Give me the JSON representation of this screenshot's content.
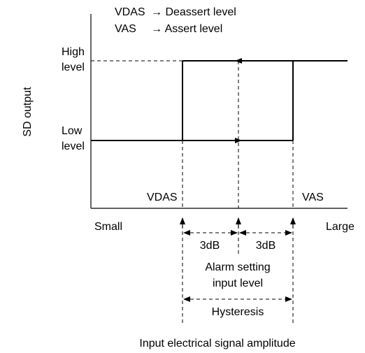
{
  "legend": [
    {
      "symbol": "VDAS",
      "text": "→ Deassert level"
    },
    {
      "symbol": "VAS",
      "text": "→ Assert level"
    }
  ],
  "y_axis_label": "SD output",
  "high_level": [
    "High",
    "level"
  ],
  "low_level": [
    "Low",
    "level"
  ],
  "threshold_labels": [
    "VDAS",
    "VAS"
  ],
  "x_ends": [
    "Small",
    "Large"
  ],
  "steps": [
    "3dB",
    "3dB"
  ],
  "alarm_label": [
    "Alarm setting",
    "input level"
  ],
  "hysteresis": "Hysteresis",
  "x_axis_label": "Input electrical signal amplitude"
}
